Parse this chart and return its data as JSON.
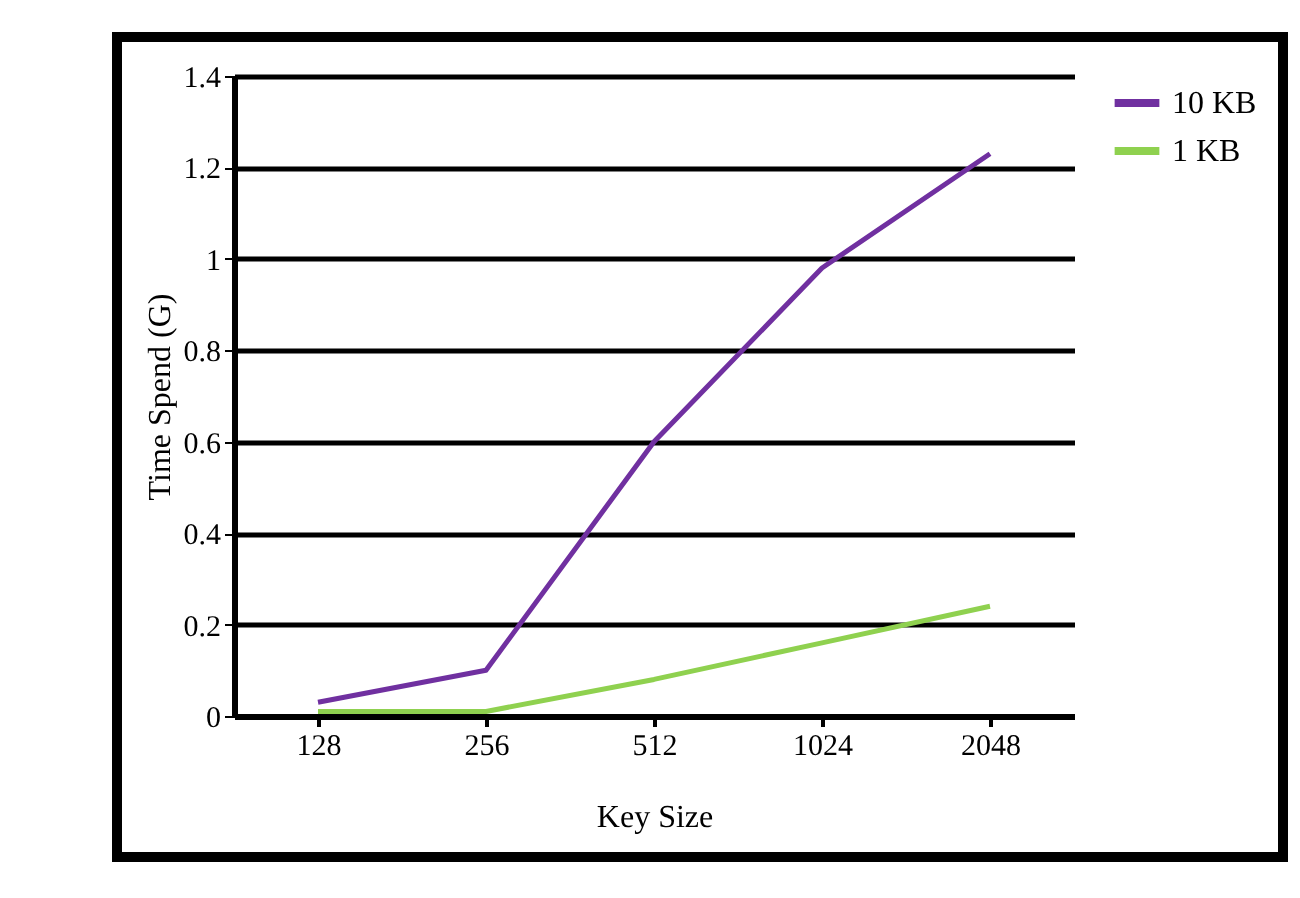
{
  "chart_data": {
    "type": "line",
    "xlabel": "Key Size",
    "ylabel": "Time Spend (G)",
    "categories": [
      "128",
      "256",
      "512",
      "1024",
      "2048"
    ],
    "series": [
      {
        "name": "10 KB",
        "color": "#7030a0",
        "values": [
          0.03,
          0.1,
          0.6,
          0.98,
          1.23
        ]
      },
      {
        "name": "1 KB",
        "color": "#8fd14f",
        "values": [
          0.01,
          0.01,
          0.08,
          0.16,
          0.24
        ]
      }
    ],
    "ylim": [
      0,
      1.4
    ],
    "yticks": [
      0,
      0.2,
      0.4,
      0.6,
      0.8,
      1,
      1.2,
      1.4
    ],
    "grid": "y",
    "legend": "right",
    "marker": "none",
    "line_style": "solid"
  }
}
